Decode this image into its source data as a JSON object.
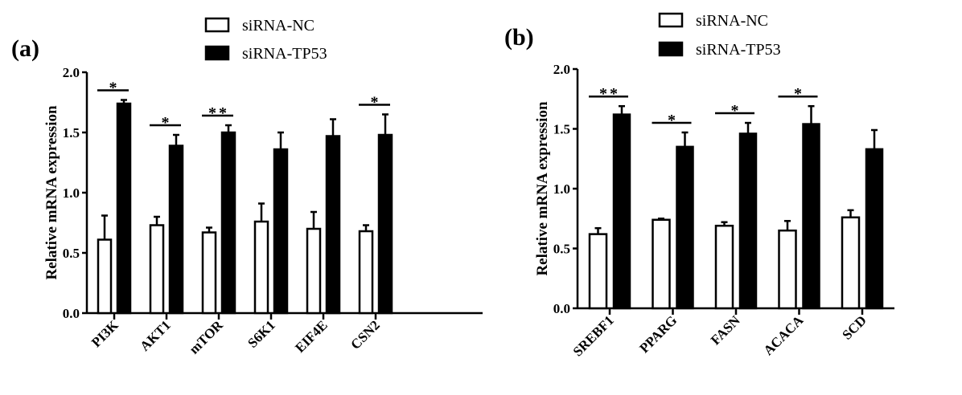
{
  "chart_data": [
    {
      "type": "bar",
      "panel_label": "(a)",
      "ylabel": "Relative mRNA expression",
      "ylim": [
        0,
        2.0
      ],
      "yticks": [
        "0.0",
        "0.5",
        "1.0",
        "1.5",
        "2.0"
      ],
      "legend": [
        "siRNA-NC",
        "siRNA-TP53"
      ],
      "legend_placement": "top-center",
      "categories": [
        "PI3K",
        "AKT1",
        "mTOR",
        "S6K1",
        "EIF4E",
        "CSN2"
      ],
      "series": [
        {
          "name": "siRNA-NC",
          "color": "#ffffff",
          "values": [
            0.61,
            0.73,
            0.67,
            0.76,
            0.7,
            0.68
          ],
          "errors": [
            0.2,
            0.07,
            0.04,
            0.15,
            0.14,
            0.05
          ]
        },
        {
          "name": "siRNA-TP53",
          "color": "#000000",
          "values": [
            1.74,
            1.39,
            1.5,
            1.36,
            1.47,
            1.48
          ],
          "errors": [
            0.03,
            0.09,
            0.06,
            0.14,
            0.14,
            0.17
          ]
        }
      ],
      "significance": [
        "*",
        "*",
        "**",
        "",
        "",
        "*"
      ]
    },
    {
      "type": "bar",
      "panel_label": "(b)",
      "ylabel": "Relative mRNA expression",
      "ylim": [
        0,
        2.0
      ],
      "yticks": [
        "0.0",
        "0.5",
        "1.0",
        "1.5",
        "2.0"
      ],
      "legend": [
        "siRNA-NC",
        "siRNA-TP53"
      ],
      "legend_placement": "top-center",
      "categories": [
        "SREBF1",
        "PPARG",
        "FASN",
        "ACACA",
        "SCD"
      ],
      "series": [
        {
          "name": "siRNA-NC",
          "color": "#ffffff",
          "values": [
            0.62,
            0.74,
            0.69,
            0.65,
            0.76
          ],
          "errors": [
            0.05,
            0.01,
            0.03,
            0.08,
            0.06
          ]
        },
        {
          "name": "siRNA-TP53",
          "color": "#000000",
          "values": [
            1.62,
            1.35,
            1.46,
            1.54,
            1.33
          ],
          "errors": [
            0.07,
            0.12,
            0.09,
            0.15,
            0.16
          ]
        }
      ],
      "significance": [
        "**",
        "*",
        "*",
        "*",
        ""
      ]
    }
  ]
}
